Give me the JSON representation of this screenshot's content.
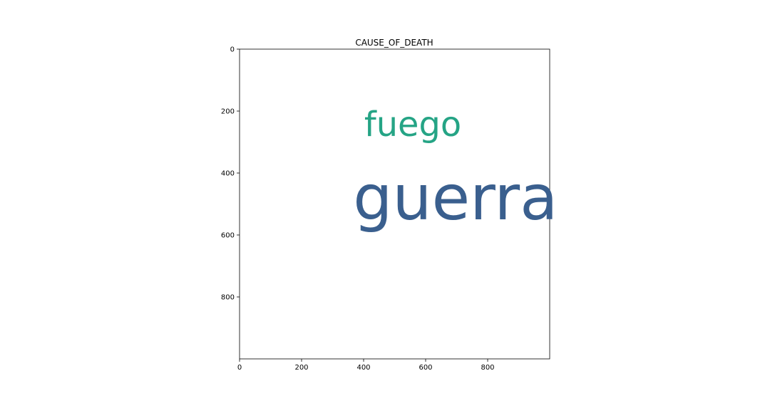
{
  "chart_data": {
    "type": "wordcloud",
    "title": "CAUSE_OF_DEATH",
    "xlim": [
      0,
      1000
    ],
    "ylim": [
      1000,
      0
    ],
    "x_ticks": [
      0,
      200,
      400,
      600,
      800
    ],
    "y_ticks": [
      0,
      200,
      400,
      600,
      800
    ],
    "grid": false,
    "words": [
      {
        "text": "fuego",
        "x": 715,
        "y": 250,
        "font_size_units": 110,
        "color": "#25a485"
      },
      {
        "text": "guerra",
        "x": 366,
        "y": 495,
        "font_size_units": 200,
        "color": "#3a5f8e"
      }
    ]
  }
}
